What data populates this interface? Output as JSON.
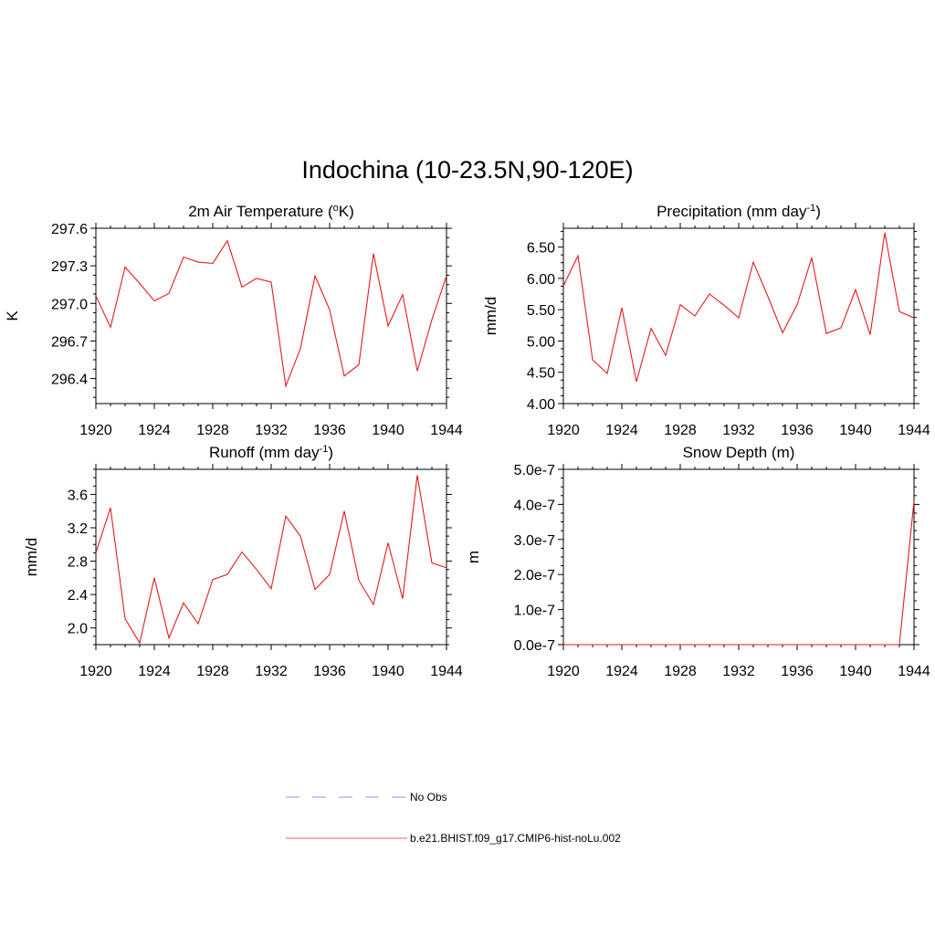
{
  "title": "Indochina (10-23.5N,90-120E)",
  "colors": {
    "series": "#e41a1c",
    "obs": "#a6a6ff",
    "axis": "#000000"
  },
  "legend": {
    "placement": "bottom-center",
    "items": [
      {
        "label": "No Obs",
        "style": "dashed",
        "color": "#a6a6ff"
      },
      {
        "label": "b.e21.BHIST.f09_g17.CMIP6-hist-noLu.002",
        "style": "solid",
        "color": "#ff7a7a"
      }
    ]
  },
  "chart_data": [
    {
      "type": "line",
      "title": "2m Air Temperature (",
      "title_sup": "o",
      "title_tail": "K)",
      "ylabel": "K",
      "xlim": [
        1920,
        1944
      ],
      "ylim": [
        296.2,
        297.6
      ],
      "xticks": [
        1920,
        1924,
        1928,
        1932,
        1936,
        1940,
        1944
      ],
      "xtick_labels": [
        "1920",
        "1924",
        "1928",
        "1932",
        "1936",
        "1940",
        "1944"
      ],
      "yticks": [
        296.4,
        296.7,
        297.0,
        297.3,
        297.6
      ],
      "ytick_labels": [
        "296.4",
        "296.7",
        "297.0",
        "297.3",
        "297.6"
      ],
      "grid": false,
      "x": [
        1920,
        1921,
        1922,
        1923,
        1924,
        1925,
        1926,
        1927,
        1928,
        1929,
        1930,
        1931,
        1932,
        1933,
        1934,
        1935,
        1936,
        1937,
        1938,
        1939,
        1940,
        1941,
        1942,
        1943,
        1944
      ],
      "series": [
        {
          "values": [
            297.06,
            296.81,
            297.29,
            297.16,
            297.02,
            297.08,
            297.37,
            297.33,
            297.32,
            297.5,
            297.13,
            297.2,
            297.17,
            296.34,
            296.64,
            297.22,
            296.95,
            296.42,
            296.51,
            297.4,
            296.82,
            297.07,
            296.46,
            296.87,
            297.22
          ]
        }
      ]
    },
    {
      "type": "line",
      "title": "Precipitation (mm day",
      "title_sup": "-1",
      "title_tail": ")",
      "ylabel": "mm/d",
      "xlim": [
        1920,
        1944
      ],
      "ylim": [
        4.0,
        6.8
      ],
      "xticks": [
        1920,
        1924,
        1928,
        1932,
        1936,
        1940,
        1944
      ],
      "xtick_labels": [
        "1920",
        "1924",
        "1928",
        "1932",
        "1936",
        "1940",
        "1944"
      ],
      "yticks": [
        4.0,
        4.5,
        5.0,
        5.5,
        6.0,
        6.5
      ],
      "ytick_labels": [
        "4.00",
        "4.50",
        "5.00",
        "5.50",
        "6.00",
        "6.50"
      ],
      "grid": false,
      "x": [
        1920,
        1921,
        1922,
        1923,
        1924,
        1925,
        1926,
        1927,
        1928,
        1929,
        1930,
        1931,
        1932,
        1933,
        1934,
        1935,
        1936,
        1937,
        1938,
        1939,
        1940,
        1941,
        1942,
        1943,
        1944
      ],
      "series": [
        {
          "values": [
            5.88,
            6.36,
            4.7,
            4.48,
            5.53,
            4.35,
            5.2,
            4.77,
            5.58,
            5.4,
            5.75,
            5.57,
            5.37,
            6.26,
            5.71,
            5.13,
            5.58,
            6.33,
            5.12,
            5.21,
            5.82,
            5.1,
            6.73,
            5.47,
            5.37
          ]
        }
      ]
    },
    {
      "type": "line",
      "title": "Runoff (mm day",
      "title_sup": "-1",
      "title_tail": ")",
      "ylabel": "mm/d",
      "xlim": [
        1920,
        1944
      ],
      "ylim": [
        1.8,
        3.9
      ],
      "xticks": [
        1920,
        1924,
        1928,
        1932,
        1936,
        1940,
        1944
      ],
      "xtick_labels": [
        "1920",
        "1924",
        "1928",
        "1932",
        "1936",
        "1940",
        "1944"
      ],
      "yticks": [
        2.0,
        2.4,
        2.8,
        3.2,
        3.6
      ],
      "ytick_labels": [
        "2.0",
        "2.4",
        "2.8",
        "3.2",
        "3.6"
      ],
      "grid": false,
      "x": [
        1920,
        1921,
        1922,
        1923,
        1924,
        1925,
        1926,
        1927,
        1928,
        1929,
        1930,
        1931,
        1932,
        1933,
        1934,
        1935,
        1936,
        1937,
        1938,
        1939,
        1940,
        1941,
        1942,
        1943,
        1944
      ],
      "series": [
        {
          "values": [
            2.9,
            3.44,
            2.11,
            1.82,
            2.6,
            1.88,
            2.3,
            2.05,
            2.58,
            2.64,
            2.91,
            2.7,
            2.47,
            3.34,
            3.1,
            2.46,
            2.64,
            3.4,
            2.57,
            2.28,
            3.02,
            2.35,
            3.83,
            2.78,
            2.72
          ]
        }
      ]
    },
    {
      "type": "line",
      "title": "Snow Depth (m)",
      "title_sup": "",
      "title_tail": "",
      "ylabel": "m",
      "xlim": [
        1920,
        1944
      ],
      "ylim": [
        0,
        5e-07
      ],
      "xticks": [
        1920,
        1924,
        1928,
        1932,
        1936,
        1940,
        1944
      ],
      "xtick_labels": [
        "1920",
        "1924",
        "1928",
        "1932",
        "1936",
        "1940",
        "1944"
      ],
      "yticks": [
        0,
        1e-07,
        2e-07,
        3e-07,
        4e-07,
        5e-07
      ],
      "ytick_labels": [
        "0.0e-7",
        "1.0e-7",
        "2.0e-7",
        "3.0e-7",
        "4.0e-7",
        "5.0e-7"
      ],
      "grid": false,
      "x": [
        1920,
        1921,
        1922,
        1923,
        1924,
        1925,
        1926,
        1927,
        1928,
        1929,
        1930,
        1931,
        1932,
        1933,
        1934,
        1935,
        1936,
        1937,
        1938,
        1939,
        1940,
        1941,
        1942,
        1943,
        1944
      ],
      "series": [
        {
          "values": [
            0,
            0,
            0,
            0,
            0,
            0,
            0,
            0,
            0,
            0,
            0,
            0,
            0,
            0,
            0,
            0,
            0,
            0,
            0,
            0,
            0,
            0,
            0,
            0,
            4.1e-07
          ]
        }
      ]
    }
  ]
}
